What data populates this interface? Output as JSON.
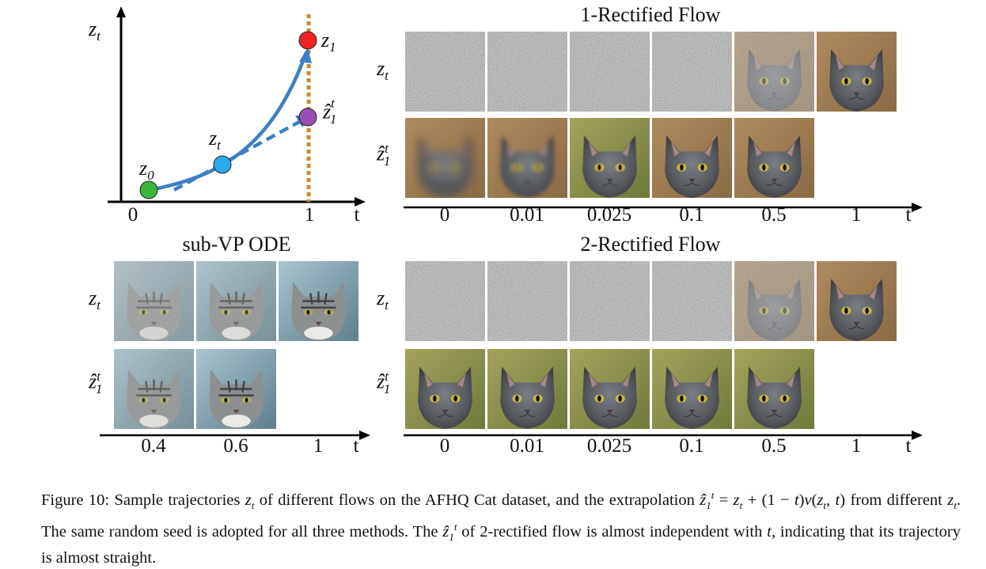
{
  "figure": {
    "diagram": {
      "y_label": "z",
      "y_label_sub": "t",
      "x_label": "t",
      "ticks": [
        "0",
        "1"
      ],
      "points": {
        "z0": {
          "name": "z",
          "sub": "0",
          "color": "#3cb43c"
        },
        "zt": {
          "name": "z",
          "sub": "t",
          "color": "#29aaee"
        },
        "z1": {
          "name": "z",
          "sub": "1",
          "color": "#ee2222"
        },
        "zhat": {
          "name": "ẑ",
          "sup": "t",
          "sub": "1",
          "color": "#9b4fb5"
        }
      },
      "curve_color": "#3b7fc4",
      "dotted_line_color": "#d4862a"
    },
    "panels": {
      "rf1": {
        "title": "1-Rectified Flow",
        "rows": [
          "z_t",
          "ẑ_1^t"
        ],
        "ticks": [
          "0",
          "0.01",
          "0.025",
          "0.1",
          "0.5",
          "1"
        ],
        "axis_label": "t"
      },
      "rf2": {
        "title": "2-Rectified Flow",
        "rows": [
          "z_t",
          "ẑ_1^t"
        ],
        "ticks": [
          "0",
          "0.01",
          "0.025",
          "0.1",
          "0.5",
          "1"
        ],
        "axis_label": "t"
      },
      "subvp": {
        "title": "sub-VP ODE",
        "rows": [
          "z_t",
          "ẑ_1^t"
        ],
        "ticks": [
          "0.4",
          "0.6",
          "1"
        ],
        "axis_label": "t"
      }
    },
    "caption": {
      "p1": "Figure 10: Sample trajectories ",
      "p2": " of different flows on the AFHQ Cat dataset, and the extrapolation ",
      "p3": " from different ",
      "p4": ". The same random seed is adopted for all three methods. The ",
      "p5": " of 2-rectified flow is almost independent with ",
      "p6": ", indicating that its trajectory is almost straight."
    }
  }
}
